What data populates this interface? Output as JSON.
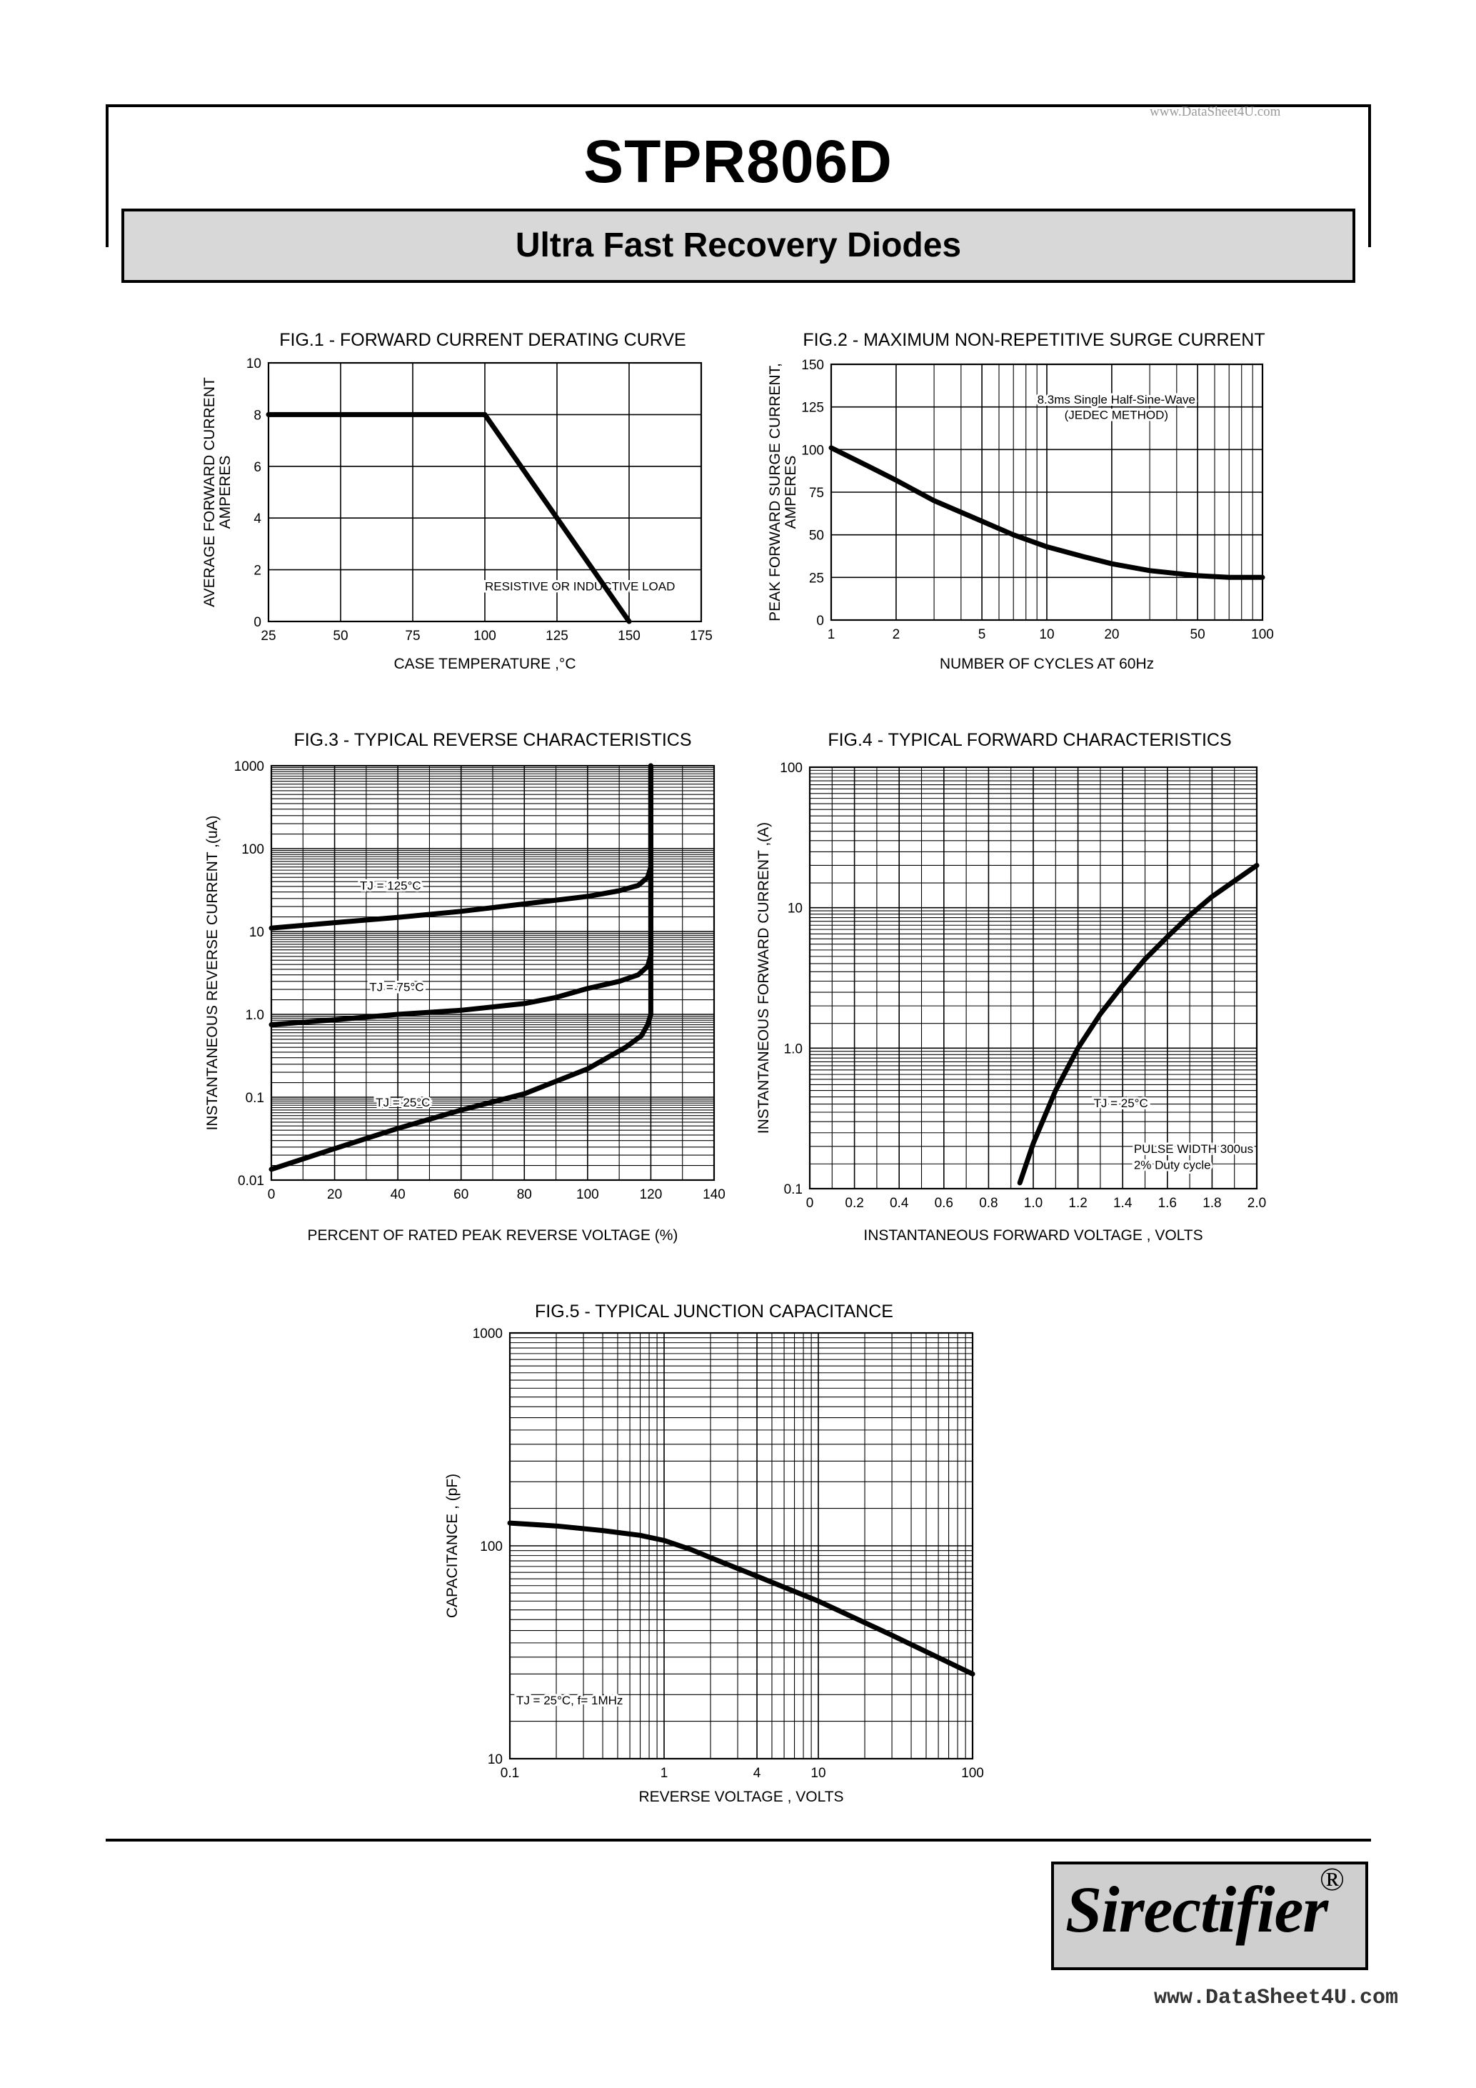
{
  "page": {
    "title": "STPR806D",
    "subtitle": "Ultra Fast Recovery Diodes",
    "watermark_top": "www.DataSheet4U.com",
    "watermark_bottom": "www.DataSheet4U.com",
    "logo_text": "Sirectifier",
    "logo_mark": "®"
  },
  "chart_data": [
    {
      "id": "fig1",
      "type": "line",
      "title": "FIG.1 - FORWARD CURRENT DERATING CURVE",
      "xlabel": "CASE TEMPERATURE ,°C",
      "ylabel": "AVERAGE FORWARD CURRENT",
      "ylabel2": "AMPERES",
      "xscale": "linear",
      "yscale": "linear",
      "xlim": [
        25,
        175
      ],
      "ylim": [
        0,
        10
      ],
      "xticks": [
        25,
        50,
        75,
        100,
        125,
        150,
        175
      ],
      "xtick_labels": [
        "25",
        "50",
        "75",
        "100",
        "125",
        "150",
        "175"
      ],
      "yticks": [
        0,
        2,
        4,
        6,
        8,
        10
      ],
      "ytick_labels": [
        "0",
        "2",
        "4",
        "6",
        "8",
        "10"
      ],
      "annotations": [
        {
          "text": "RESISTIVE OR INDUCTIVE LOAD",
          "x": 100,
          "y": 1.2
        }
      ],
      "series": [
        {
          "name": "Derating",
          "x": [
            25,
            100,
            150
          ],
          "y": [
            8,
            8,
            0
          ]
        }
      ]
    },
    {
      "id": "fig2",
      "type": "line",
      "title": "FIG.2 - MAXIMUM NON-REPETITIVE SURGE CURRENT",
      "xlabel": "NUMBER OF CYCLES AT 60Hz",
      "ylabel": "PEAK FORWARD SURGE CURRENT,",
      "ylabel2": "AMPERES",
      "xscale": "log",
      "yscale": "linear",
      "xlim": [
        1,
        100
      ],
      "ylim": [
        0,
        150
      ],
      "xticks": [
        1,
        2,
        5,
        10,
        20,
        50,
        100
      ],
      "xtick_labels": [
        "1",
        "2",
        "5",
        "10",
        "20",
        "50",
        "100"
      ],
      "yticks": [
        0,
        25,
        50,
        75,
        100,
        125,
        150
      ],
      "ytick_labels": [
        "0",
        "25",
        "50",
        "75",
        "100",
        "125",
        "150"
      ],
      "annotations": [
        {
          "text": "8.3ms Single Half-Sine-Wave",
          "x": 21,
          "y": 127
        },
        {
          "text": "(JEDEC METHOD)",
          "x": 21,
          "y": 118
        }
      ],
      "series": [
        {
          "name": "Surge",
          "x": [
            1,
            1.5,
            2,
            3,
            5,
            7,
            10,
            15,
            20,
            30,
            50,
            70,
            100
          ],
          "y": [
            101,
            90,
            82,
            70,
            58,
            50,
            43,
            37,
            33,
            29,
            26,
            25,
            25
          ]
        }
      ]
    },
    {
      "id": "fig3",
      "type": "line",
      "title": "FIG.3 - TYPICAL REVERSE CHARACTERISTICS",
      "xlabel": "PERCENT OF RATED PEAK REVERSE VOLTAGE  (%)",
      "ylabel": "INSTANTANEOUS REVERSE CURRENT ,(uA)",
      "xscale": "linear",
      "yscale": "log",
      "xlim": [
        0,
        140
      ],
      "ylim": [
        0.01,
        1000
      ],
      "xticks": [
        0,
        20,
        40,
        60,
        80,
        100,
        120,
        140
      ],
      "xtick_labels": [
        "0",
        "20",
        "40",
        "60",
        "80",
        "100",
        "120",
        "140"
      ],
      "yticks": [
        0.01,
        0.1,
        1,
        10,
        100,
        1000
      ],
      "ytick_labels": [
        "0.01",
        "0.1",
        "1.0",
        "10",
        "100",
        "1000"
      ],
      "annotations": [
        {
          "text": "TJ = 125°C",
          "x": 28,
          "y": 32
        },
        {
          "text": "TJ = 75°C",
          "x": 31,
          "y": 1.9
        },
        {
          "text": "TJ = 25°C",
          "x": 33,
          "y": 0.077
        }
      ],
      "series": [
        {
          "name": "TJ = 125°C",
          "x": [
            0,
            20,
            40,
            60,
            80,
            100,
            110,
            116,
            119,
            120,
            120
          ],
          "y": [
            11,
            12.8,
            14.8,
            17.5,
            21.5,
            26.5,
            31,
            36,
            45,
            60,
            1000
          ]
        },
        {
          "name": "TJ = 75°C",
          "x": [
            0,
            20,
            40,
            60,
            80,
            90,
            100,
            110,
            116,
            119,
            120,
            120
          ],
          "y": [
            0.75,
            0.86,
            1.0,
            1.12,
            1.35,
            1.6,
            2.05,
            2.5,
            3.0,
            3.8,
            5.2,
            1000
          ]
        },
        {
          "name": "TJ = 25°C",
          "x": [
            0,
            20,
            40,
            60,
            80,
            100,
            112,
            117,
            119,
            120,
            120
          ],
          "y": [
            0.0135,
            0.024,
            0.042,
            0.07,
            0.11,
            0.22,
            0.4,
            0.55,
            0.75,
            1.0,
            1000
          ]
        }
      ]
    },
    {
      "id": "fig4",
      "type": "line",
      "title": "FIG.4 - TYPICAL FORWARD CHARACTERISTICS",
      "xlabel": "INSTANTANEOUS FORWARD VOLTAGE , VOLTS",
      "ylabel": "INSTANTANEOUS  FORWARD CURRENT ,(A)",
      "xscale": "linear",
      "yscale": "log",
      "xlim": [
        0,
        2.0
      ],
      "ylim": [
        0.1,
        100
      ],
      "xticks": [
        0,
        0.2,
        0.4,
        0.6,
        0.8,
        1.0,
        1.2,
        1.4,
        1.6,
        1.8,
        2.0
      ],
      "xtick_labels": [
        "0",
        "0.2",
        "0.4",
        "0.6",
        "0.8",
        "1.0",
        "1.2",
        "1.4",
        "1.6",
        "1.8",
        "2.0"
      ],
      "yticks": [
        0.1,
        1,
        10,
        100
      ],
      "ytick_labels": [
        "0.1",
        "1.0",
        "10",
        "100"
      ],
      "annotations": [
        {
          "text": "TJ = 25°C",
          "x": 1.27,
          "y": 0.38
        },
        {
          "text": "PULSE WIDTH 300us",
          "x": 1.45,
          "y": 0.18
        },
        {
          "text": "2% Duty cycle",
          "x": 1.45,
          "y": 0.138
        }
      ],
      "series": [
        {
          "name": "TJ = 25°C",
          "x": [
            0.94,
            1.0,
            1.1,
            1.2,
            1.3,
            1.4,
            1.5,
            1.6,
            1.7,
            1.8,
            1.9,
            2.0
          ],
          "y": [
            0.11,
            0.21,
            0.5,
            1.0,
            1.75,
            2.8,
            4.3,
            6.2,
            8.8,
            12,
            15.5,
            20
          ]
        }
      ]
    },
    {
      "id": "fig5",
      "type": "line",
      "title": "FIG.5 - TYPICAL JUNCTION CAPACITANCE",
      "xlabel": "REVERSE VOLTAGE , VOLTS",
      "ylabel": "CAPACITANCE , (pF)",
      "xscale": "log",
      "yscale": "log",
      "xlim": [
        0.1,
        100
      ],
      "ylim": [
        10,
        1000
      ],
      "xticks": [
        0.1,
        1,
        4,
        10,
        100
      ],
      "xtick_labels": [
        "0.1",
        "1",
        "4",
        "10",
        "100"
      ],
      "yticks": [
        10,
        100,
        1000
      ],
      "ytick_labels": [
        "10",
        "100",
        "1000"
      ],
      "annotations": [
        {
          "text": "TJ = 25°C, f= 1MHz",
          "x": 0.11,
          "y": 18
        }
      ],
      "series": [
        {
          "name": "Capacitance",
          "x": [
            0.1,
            0.2,
            0.4,
            0.7,
            1.0,
            1.5,
            2,
            4,
            10,
            30,
            100
          ],
          "y": [
            128,
            124,
            118,
            112,
            106,
            96,
            88,
            72,
            55,
            38,
            25
          ]
        }
      ]
    }
  ]
}
